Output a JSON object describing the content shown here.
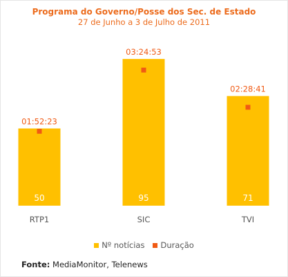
{
  "chart_data": {
    "type": "bar",
    "title": "Programa do Governo/Posse dos Sec. de Estado",
    "subtitle": "27 de Junho a 3 de Julho de 2011",
    "categories": [
      "RTP1",
      "SIC",
      "TVI"
    ],
    "series": [
      {
        "name": "Nº notícias",
        "values": [
          50,
          95,
          71
        ],
        "color": "#ffc000"
      },
      {
        "name": "Duração",
        "values": [
          "01:52:23",
          "03:24:53",
          "02:28:41"
        ],
        "seconds": [
          6743,
          12293,
          8921
        ],
        "color": "#f05a14"
      }
    ],
    "ylim": [
      0,
      100
    ],
    "duration_ylim_seconds": [
      0,
      14000
    ],
    "grid": false,
    "legend_position": "bottom-center"
  },
  "colors": {
    "title": "#ec6b1c",
    "bar": "#ffc000",
    "marker": "#f05a14",
    "bar_label": "#ffffff",
    "axis_label": "#555555"
  },
  "source": {
    "label": "Fonte:",
    "text": "MediaMonitor, Telenews"
  }
}
